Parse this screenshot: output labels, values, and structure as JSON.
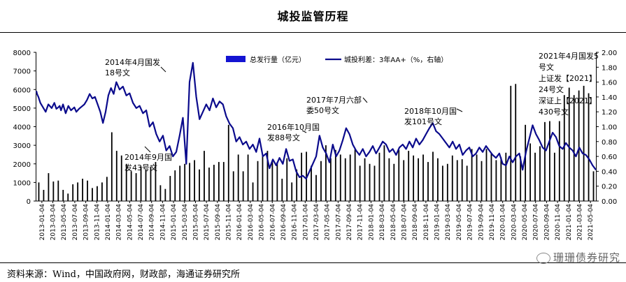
{
  "header": {
    "title": "城投监管历程"
  },
  "footer": {
    "source": "资料来源：Wind，中国政府网，财政部，海通证券研究所"
  },
  "watermark": {
    "text": "珊珊债券研究",
    "icon": "wechat-icon"
  },
  "colors": {
    "bar": "#000000",
    "line": "#0a0a8c",
    "legend_bar": "#1414d2"
  },
  "chart_data": {
    "type": "bar+line",
    "title": "城投监管历程",
    "left_axis": {
      "min": 0,
      "max": 8000,
      "ticks": [
        "0",
        "1000",
        "2000",
        "3000",
        "4000",
        "5000",
        "6000",
        "7000",
        "8000"
      ]
    },
    "right_axis": {
      "min": 0,
      "max": 2.0,
      "ticks": [
        "0.00",
        "0.20",
        "0.40",
        "0.60",
        "0.80",
        "1.00",
        "1.20",
        "1.40",
        "1.60",
        "1.80",
        "2.00"
      ]
    },
    "legend": [
      "总发行量（亿元）",
      "城投利差：3年AA+（%，右轴）"
    ],
    "x_ticks": [
      "2013-01-04",
      "2013-03-04",
      "2013-05-04",
      "2013-07-04",
      "2013-09-04",
      "2013-11-04",
      "2014-01-04",
      "2014-03-04",
      "2014-05-04",
      "2014-07-04",
      "2014-09-04",
      "2014-11-04",
      "2015-01-04",
      "2015-03-04",
      "2015-05-04",
      "2015-07-04",
      "2015-09-04",
      "2015-11-04",
      "2016-01-04",
      "2016-03-04",
      "2016-05-04",
      "2016-07-04",
      "2016-09-04",
      "2016-11-04",
      "2017-01-04",
      "2017-03-04",
      "2017-05-04",
      "2017-07-04",
      "2017-09-04",
      "2017-11-04",
      "2018-01-04",
      "2018-03-04",
      "2018-05-04",
      "2018-07-04",
      "2018-09-04",
      "2018-11-04",
      "2019-01-04",
      "2019-03-04",
      "2019-05-04",
      "2019-07-04",
      "2019-09-04",
      "2019-11-04",
      "2020-01-04",
      "2020-03-04",
      "2020-05-04",
      "2020-07-04",
      "2020-09-04",
      "2020-11-04",
      "2021-01-04",
      "2021-03-04",
      "2021-05-04"
    ],
    "series": [
      {
        "name": "总发行量（亿元）",
        "type": "bar",
        "values": [
          1000,
          600,
          1500,
          1050,
          1100,
          600,
          400,
          900,
          1000,
          1200,
          1100,
          700,
          800,
          1000,
          1300,
          3700,
          2700,
          2450,
          2000,
          1600,
          1500,
          1850,
          1700,
          1850,
          2100,
          850,
          650,
          1350,
          1650,
          1900,
          2000,
          2050,
          2200,
          1700,
          2700,
          1800,
          1950,
          2100,
          2100,
          4100,
          1600,
          2500,
          1600,
          2500,
          1000,
          2150,
          2500,
          2700,
          2200,
          2100,
          1200,
          2300,
          1000,
          1700,
          2600,
          2650,
          1900,
          1400,
          2150,
          3000,
          2300,
          2750,
          2500,
          2300,
          2500,
          2800,
          1900,
          2300,
          2000,
          1900,
          2600,
          3000,
          2300,
          2000,
          2750,
          2200,
          2700,
          2450,
          2300,
          2500,
          2100,
          2650,
          2300,
          1900,
          2000,
          2450,
          2200,
          2250,
          1900,
          2800,
          2500,
          2150,
          2800,
          2550,
          2200,
          2350,
          2600,
          6200,
          6300,
          2400,
          4100,
          3100,
          2600,
          2950,
          4250,
          4300,
          2600,
          4300,
          5700,
          6100,
          5700,
          5950,
          6200,
          5800,
          1600
        ]
      },
      {
        "name": "城投利差：3年AA+（%，右轴）",
        "type": "line",
        "x": [
          0,
          0.01,
          0.03,
          0.06,
          0.1,
          0.14,
          0.18,
          0.23,
          0.27,
          0.3,
          0.33,
          0.35,
          0.37,
          0.4,
          0.44,
          0.48,
          0.52,
          0.57,
          0.6,
          0.64,
          0.68,
          0.72,
          0.76,
          0.8,
          0.84,
          0.88,
          0.92,
          0.96,
          1.0,
          1.04,
          1.08,
          1.12,
          1.16,
          1.2,
          1.25,
          1.3,
          1.35,
          1.4,
          1.45,
          1.5,
          1.55,
          1.6,
          1.65,
          1.7,
          1.75,
          1.8,
          1.85,
          1.9,
          1.95,
          2.0,
          2.05,
          2.1,
          2.15,
          2.2,
          2.25,
          2.3,
          2.35,
          2.4,
          2.45,
          2.5,
          2.55,
          2.6,
          2.65,
          2.7,
          2.75,
          2.8,
          2.85,
          2.9,
          2.95,
          3.0,
          3.05,
          3.1,
          3.15,
          3.2,
          3.25,
          3.3,
          3.35,
          3.4,
          3.45,
          3.5,
          3.55,
          3.6,
          3.65,
          3.7,
          3.75,
          3.8,
          3.85,
          3.9,
          3.95,
          4.0,
          4.05,
          4.1,
          4.15,
          4.2,
          4.25,
          4.3,
          4.35,
          4.4,
          4.45,
          4.5,
          4.55,
          4.6,
          4.65,
          4.7,
          4.75,
          4.8,
          4.85,
          4.9,
          4.95,
          5.0,
          5.05,
          5.1,
          5.15,
          5.2,
          5.25,
          5.3,
          5.35,
          5.4,
          5.45,
          5.5,
          5.55,
          5.6,
          5.65,
          5.7,
          5.75,
          5.8,
          5.85,
          5.9,
          5.95,
          6.0,
          6.05,
          6.1,
          6.15,
          6.2,
          6.25,
          6.3,
          6.35,
          6.4,
          6.45,
          6.5,
          6.55,
          6.6,
          6.65,
          6.7,
          6.75,
          6.8,
          6.85,
          6.9,
          6.95,
          7.0,
          7.05,
          7.1,
          7.15,
          7.2,
          7.25,
          7.3,
          7.35,
          7.4,
          7.45,
          7.5,
          7.55,
          7.6,
          7.65,
          7.7,
          7.75,
          7.8,
          7.85,
          7.9,
          7.95,
          8.0,
          8.05,
          8.1,
          8.15,
          8.2,
          8.25,
          8.3,
          8.35,
          8.4
        ],
        "values": [
          1.48,
          1.44,
          1.4,
          1.32,
          1.26,
          1.2,
          1.3,
          1.25,
          1.32,
          1.24,
          1.26,
          1.28,
          1.22,
          1.3,
          1.18,
          1.28,
          1.22,
          1.26,
          1.2,
          1.24,
          1.27,
          1.3,
          1.36,
          1.44,
          1.38,
          1.4,
          1.3,
          1.2,
          1.05,
          1.2,
          1.42,
          1.52,
          1.44,
          1.6,
          1.5,
          1.54,
          1.42,
          1.45,
          1.32,
          1.25,
          1.28,
          1.18,
          1.22,
          1.0,
          1.06,
          0.9,
          0.8,
          0.88,
          0.68,
          0.74,
          0.6,
          0.66,
          0.88,
          1.12,
          0.5,
          1.6,
          1.86,
          1.4,
          1.1,
          1.2,
          1.3,
          1.22,
          1.38,
          1.26,
          1.34,
          1.3,
          1.14,
          1.04,
          0.98,
          0.8,
          0.86,
          0.76,
          0.8,
          0.7,
          0.76,
          0.66,
          0.84,
          0.6,
          0.64,
          0.44,
          0.56,
          0.48,
          0.58,
          0.5,
          0.7,
          0.54,
          0.56,
          0.4,
          0.32,
          0.34,
          0.3,
          0.4,
          0.5,
          0.6,
          0.88,
          0.72,
          0.64,
          0.52,
          0.76,
          0.6,
          0.68,
          0.82,
          0.98,
          0.9,
          0.76,
          0.68,
          0.62,
          0.7,
          0.6,
          0.66,
          0.74,
          0.64,
          0.72,
          0.8,
          0.76,
          0.66,
          0.7,
          0.62,
          0.72,
          0.76,
          0.7,
          0.8,
          0.72,
          0.84,
          0.76,
          0.82,
          0.9,
          0.98,
          1.05,
          0.94,
          0.9,
          0.84,
          0.78,
          0.72,
          0.8,
          0.7,
          0.76,
          0.62,
          0.68,
          0.72,
          0.6,
          0.64,
          0.72,
          0.66,
          0.74,
          0.68,
          0.62,
          0.58,
          0.64,
          0.5,
          0.48,
          0.6,
          0.52,
          0.6,
          0.64,
          0.42,
          0.66,
          0.84,
          1.02,
          0.9,
          0.82,
          0.72,
          0.68,
          0.8,
          0.92,
          0.86,
          0.74,
          0.7,
          0.78,
          0.72,
          0.68,
          0.6,
          0.72,
          0.64,
          0.62,
          0.56,
          0.48,
          0.42
        ]
      }
    ],
    "annotations": [
      {
        "id": "a2014-4",
        "lines": [
          "2014年4月国发",
          "18号文"
        ]
      },
      {
        "id": "a2014-9",
        "lines": [
          "2014年9月国",
          "发43号文"
        ]
      },
      {
        "id": "a2016-10",
        "lines": [
          "2016年10月国",
          "发88号文"
        ]
      },
      {
        "id": "a2017-7",
        "lines": [
          "2017年7月六部",
          "委50号文"
        ]
      },
      {
        "id": "a2018-10",
        "lines": [
          "2018年10月国",
          "发101号文"
        ]
      },
      {
        "id": "a2021",
        "lines": [
          "2021年4月国发5",
          "号文",
          "上证发【2021】",
          "24号文",
          "深证上【2021】",
          "430号文"
        ]
      }
    ]
  }
}
